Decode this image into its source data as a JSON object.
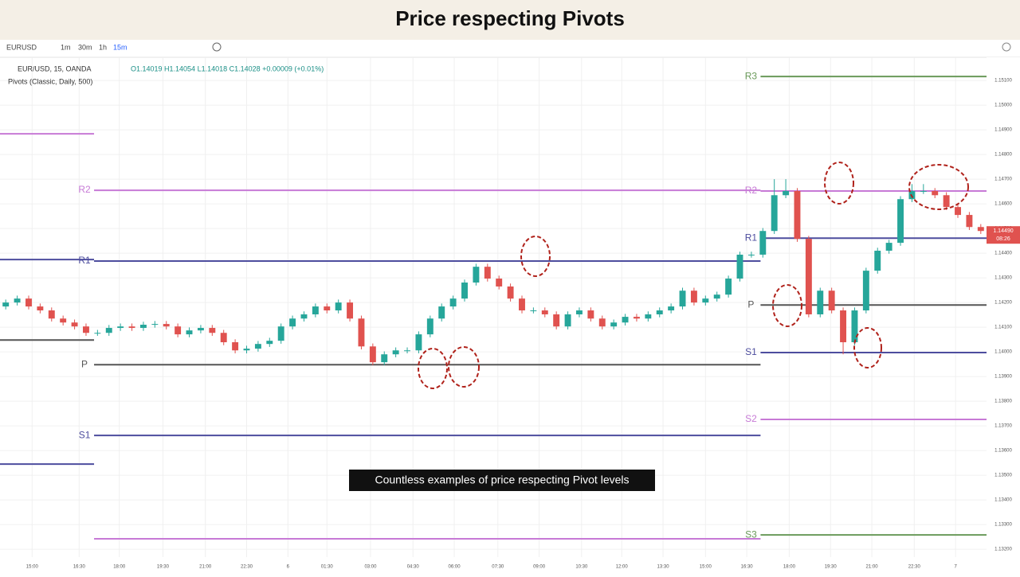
{
  "header": {
    "title": "Price respecting Pivots"
  },
  "toolbar": {
    "symbol": "EURUSD",
    "intervals": [
      "1m",
      "30m",
      "1h",
      "15m"
    ]
  },
  "chart_data": {
    "type": "candlestick",
    "legend": {
      "symbol": "EUR/USD, 15, OANDA",
      "ohlc": "O1.14019 H1.14054 L1.14018 C1.14028 +0.00009 (+0.01%)",
      "indicator": "Pivots (Classic, Daily, 500)"
    },
    "annotation": "Countless examples of price respecting Pivot levels",
    "up_color": "#26a69a",
    "down_color": "#e0524f",
    "grid": true,
    "xlim": [
      0,
      86
    ],
    "ylim": [
      1.13168,
      1.15194
    ],
    "xticks": [
      {
        "value": 2.8,
        "label": "15:00"
      },
      {
        "value": 6.9,
        "label": "16:30"
      },
      {
        "value": 10.4,
        "label": "18:00"
      },
      {
        "value": 14.2,
        "label": "19:30"
      },
      {
        "value": 17.9,
        "label": "21:00"
      },
      {
        "value": 21.5,
        "label": "22:30"
      },
      {
        "value": 25.1,
        "label": "6"
      },
      {
        "value": 28.5,
        "label": "01:30"
      },
      {
        "value": 32.3,
        "label": "03:00"
      },
      {
        "value": 36,
        "label": "04:30"
      },
      {
        "value": 39.6,
        "label": "06:00"
      },
      {
        "value": 43.4,
        "label": "07:30"
      },
      {
        "value": 47,
        "label": "09:00"
      },
      {
        "value": 50.7,
        "label": "10:30"
      },
      {
        "value": 54.2,
        "label": "12:00"
      },
      {
        "value": 57.8,
        "label": "13:30"
      },
      {
        "value": 61.5,
        "label": "15:00"
      },
      {
        "value": 65.1,
        "label": "16:30"
      },
      {
        "value": 68.8,
        "label": "18:00"
      },
      {
        "value": 72.4,
        "label": "19:30"
      },
      {
        "value": 76,
        "label": "21:00"
      },
      {
        "value": 79.7,
        "label": "22:30"
      },
      {
        "value": 83.3,
        "label": "7"
      }
    ],
    "yticks": [
      {
        "value": 1.132,
        "label": "1.13200"
      },
      {
        "value": 1.133,
        "label": "1.13300"
      },
      {
        "value": 1.134,
        "label": "1.13400"
      },
      {
        "value": 1.135,
        "label": "1.13500"
      },
      {
        "value": 1.136,
        "label": "1.13600"
      },
      {
        "value": 1.137,
        "label": "1.13700"
      },
      {
        "value": 1.138,
        "label": "1.13800"
      },
      {
        "value": 1.139,
        "label": "1.13900"
      },
      {
        "value": 1.14,
        "label": "1.14000"
      },
      {
        "value": 1.141,
        "label": "1.14100"
      },
      {
        "value": 1.142,
        "label": "1.14200"
      },
      {
        "value": 1.143,
        "label": "1.14300"
      },
      {
        "value": 1.144,
        "label": "1.14400"
      },
      {
        "value": 1.145,
        "label": "1.14500"
      },
      {
        "value": 1.146,
        "label": "1.14600"
      },
      {
        "value": 1.147,
        "label": "1.14700"
      },
      {
        "value": 1.148,
        "label": "1.14800"
      },
      {
        "value": 1.149,
        "label": "1.14900"
      },
      {
        "value": 1.15,
        "label": "1.15000"
      },
      {
        "value": 1.151,
        "label": "1.15100"
      }
    ],
    "last_price": {
      "value": 1.1449,
      "label": "1.14490"
    },
    "countdown": "08:26",
    "open": [
      1.14184,
      1.142,
      1.14216,
      1.14184,
      1.14168,
      1.14135,
      1.14119,
      1.14103,
      1.14077,
      1.14077,
      1.14097,
      1.14103,
      1.14097,
      1.1411,
      1.14113,
      1.14103,
      1.14071,
      1.14087,
      1.14097,
      1.14077,
      1.14039,
      1.14006,
      1.14013,
      1.14032,
      1.14045,
      1.14103,
      1.14135,
      1.14152,
      1.14184,
      1.14168,
      1.142,
      1.14135,
      1.14022,
      1.13958,
      1.1399,
      1.14006,
      1.14006,
      1.14071,
      1.14135,
      1.14184,
      1.14216,
      1.14281,
      1.14345,
      1.14297,
      1.14265,
      1.14216,
      1.14168,
      1.14168,
      1.14152,
      1.14103,
      1.14152,
      1.14168,
      1.14135,
      1.14103,
      1.14119,
      1.14142,
      1.14135,
      1.14152,
      1.14168,
      1.14184,
      1.14248,
      1.142,
      1.14216,
      1.14232,
      1.14297,
      1.14394,
      1.14394,
      1.1449,
      1.14635,
      1.14652,
      1.14458,
      1.14152,
      1.14248,
      1.14168,
      1.14039,
      1.14168,
      1.14329,
      1.1441,
      1.14442,
      1.14619,
      1.14652,
      1.14652,
      1.14635,
      1.14587,
      1.14555,
      1.14506
    ],
    "high": [
      1.14212,
      1.14228,
      1.14228,
      1.14196,
      1.1418,
      1.14147,
      1.14131,
      1.14115,
      1.14089,
      1.14109,
      1.14115,
      1.14115,
      1.14122,
      1.14125,
      1.14125,
      1.14115,
      1.14099,
      1.14109,
      1.14109,
      1.14089,
      1.14051,
      1.14025,
      1.14044,
      1.14057,
      1.14115,
      1.14147,
      1.14164,
      1.14196,
      1.14196,
      1.14212,
      1.14212,
      1.14147,
      1.14034,
      1.14002,
      1.14018,
      1.14018,
      1.14083,
      1.14147,
      1.14196,
      1.14228,
      1.14293,
      1.14357,
      1.14357,
      1.14309,
      1.14277,
      1.14228,
      1.1418,
      1.1418,
      1.14164,
      1.14164,
      1.1418,
      1.1418,
      1.14147,
      1.14131,
      1.14154,
      1.14154,
      1.14164,
      1.1418,
      1.14196,
      1.1426,
      1.1426,
      1.14228,
      1.14244,
      1.14309,
      1.14406,
      1.14406,
      1.14502,
      1.147,
      1.147,
      1.14664,
      1.1447,
      1.1426,
      1.1426,
      1.1418,
      1.1418,
      1.14341,
      1.14422,
      1.14454,
      1.14631,
      1.1468,
      1.1468,
      1.14664,
      1.14647,
      1.14599,
      1.14567,
      1.14518
    ],
    "low": [
      1.14172,
      1.14188,
      1.14172,
      1.14156,
      1.14123,
      1.14107,
      1.14091,
      1.14065,
      1.14065,
      1.14065,
      1.14085,
      1.14085,
      1.14085,
      1.14098,
      1.14091,
      1.14059,
      1.14059,
      1.14075,
      1.14065,
      1.14027,
      1.13994,
      1.13994,
      1.14001,
      1.1402,
      1.14033,
      1.14091,
      1.14123,
      1.1414,
      1.14156,
      1.14156,
      1.14123,
      1.1401,
      1.13946,
      1.13946,
      1.13978,
      1.13994,
      1.13994,
      1.14059,
      1.14123,
      1.14172,
      1.14204,
      1.14269,
      1.14285,
      1.14253,
      1.14204,
      1.14156,
      1.14156,
      1.1414,
      1.14091,
      1.14091,
      1.1414,
      1.14123,
      1.14091,
      1.14091,
      1.14107,
      1.14123,
      1.14123,
      1.1414,
      1.14156,
      1.14172,
      1.14188,
      1.14188,
      1.14204,
      1.1422,
      1.14285,
      1.14382,
      1.14382,
      1.14478,
      1.14623,
      1.14446,
      1.1414,
      1.1414,
      1.14156,
      1.1399,
      1.14027,
      1.14156,
      1.14317,
      1.14398,
      1.1443,
      1.14607,
      1.1464,
      1.14623,
      1.14575,
      1.14543,
      1.14494,
      1.14478
    ],
    "close": [
      1.142,
      1.14216,
      1.14184,
      1.14168,
      1.14135,
      1.14119,
      1.14103,
      1.14077,
      1.14077,
      1.14097,
      1.14103,
      1.14097,
      1.1411,
      1.14113,
      1.14103,
      1.14071,
      1.14087,
      1.14097,
      1.14077,
      1.14039,
      1.14006,
      1.14013,
      1.14032,
      1.14045,
      1.14103,
      1.14135,
      1.14152,
      1.14184,
      1.14168,
      1.142,
      1.14135,
      1.14022,
      1.13958,
      1.1399,
      1.14006,
      1.14006,
      1.14071,
      1.14135,
      1.14184,
      1.14216,
      1.14281,
      1.14345,
      1.14297,
      1.14265,
      1.14216,
      1.14168,
      1.14168,
      1.14152,
      1.14103,
      1.14152,
      1.14168,
      1.14135,
      1.14103,
      1.14119,
      1.14142,
      1.14135,
      1.14152,
      1.14168,
      1.14184,
      1.14248,
      1.142,
      1.14216,
      1.14232,
      1.14297,
      1.14394,
      1.14394,
      1.1449,
      1.14635,
      1.14652,
      1.14458,
      1.14152,
      1.14248,
      1.14168,
      1.14039,
      1.14168,
      1.14329,
      1.1441,
      1.14442,
      1.14619,
      1.14652,
      1.14652,
      1.14635,
      1.14587,
      1.14555,
      1.14506,
      1.1449
    ],
    "pivots": [
      {
        "x_range": [
          0,
          8.2
        ],
        "levels": [
          {
            "label": null,
            "value": 1.14884,
            "color": "#c77ad6"
          },
          {
            "label": null,
            "value": 1.14374,
            "color": "#4d4d9e"
          },
          {
            "label": null,
            "value": 1.14048,
            "color": "#555555"
          },
          {
            "label": null,
            "value": 1.13545,
            "color": "#4d4d9e"
          }
        ]
      },
      {
        "x_range": [
          8.2,
          66.3
        ],
        "levels": [
          {
            "label": "R2",
            "value": 1.14655,
            "color": "#c77ad6"
          },
          {
            "label": "R1",
            "value": 1.14368,
            "color": "#4d4d9e"
          },
          {
            "label": "P",
            "value": 1.13948,
            "color": "#555555"
          },
          {
            "label": "S1",
            "value": 1.13661,
            "color": "#4d4d9e"
          },
          {
            "label": null,
            "value": 1.13242,
            "color": "#c77ad6"
          }
        ]
      },
      {
        "x_range": [
          66.3,
          86
        ],
        "levels": [
          {
            "label": "R3",
            "value": 1.15116,
            "color": "#6a9a5a"
          },
          {
            "label": "R2",
            "value": 1.14652,
            "color": "#c77ad6"
          },
          {
            "label": "R1",
            "value": 1.14461,
            "color": "#4d4d9e"
          },
          {
            "label": "P",
            "value": 1.1419,
            "color": "#555555"
          },
          {
            "label": "S1",
            "value": 1.13997,
            "color": "#4d4d9e"
          },
          {
            "label": "S2",
            "value": 1.13726,
            "color": "#c77ad6"
          },
          {
            "label": "S3",
            "value": 1.13258,
            "color": "#6a9a5a"
          }
        ]
      }
    ]
  }
}
